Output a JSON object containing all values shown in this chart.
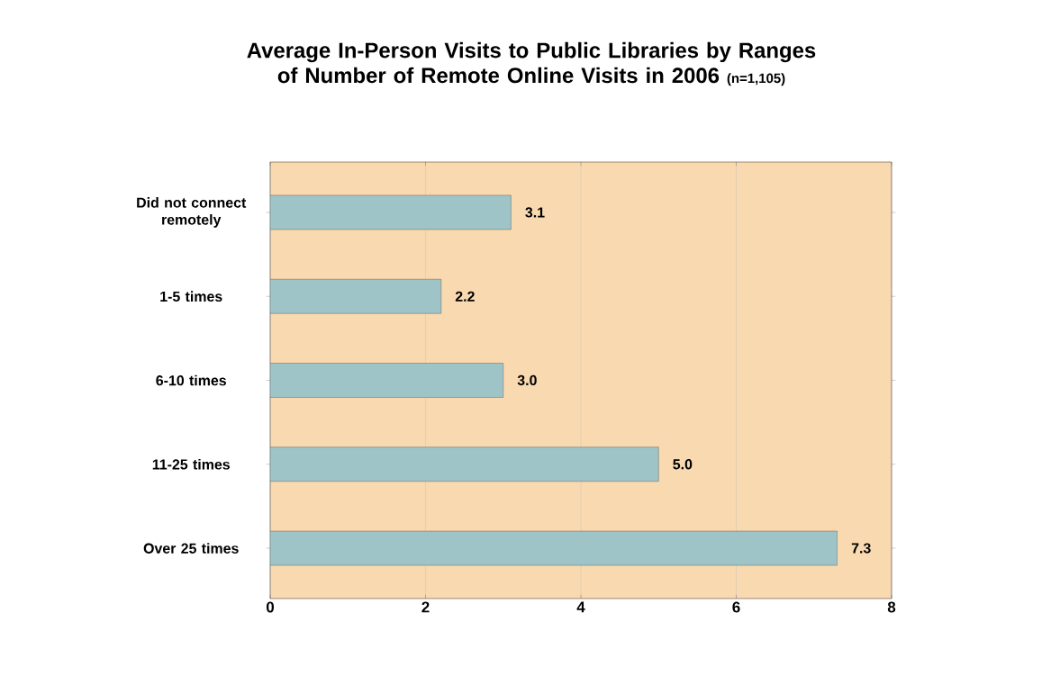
{
  "chart_data": {
    "type": "bar",
    "orientation": "horizontal",
    "title": "Average In-Person Visits to Public Libraries by Ranges of Number of Remote Online Visits in 2006",
    "subtitle": "(n=1,105)",
    "categories": [
      "Did not connect remotely",
      "1-5 times",
      "6-10 times",
      "11-25 times",
      "Over 25 times"
    ],
    "values": [
      3.1,
      2.2,
      3.0,
      5.0,
      7.3
    ],
    "color": "#9fc4c8",
    "value_labels": [
      "3.1",
      "2.2",
      "3.0",
      "5.0",
      "7.3"
    ],
    "xlim": [
      0,
      8
    ],
    "xticks": [
      0,
      2,
      4,
      6,
      8
    ],
    "grid": "x"
  }
}
